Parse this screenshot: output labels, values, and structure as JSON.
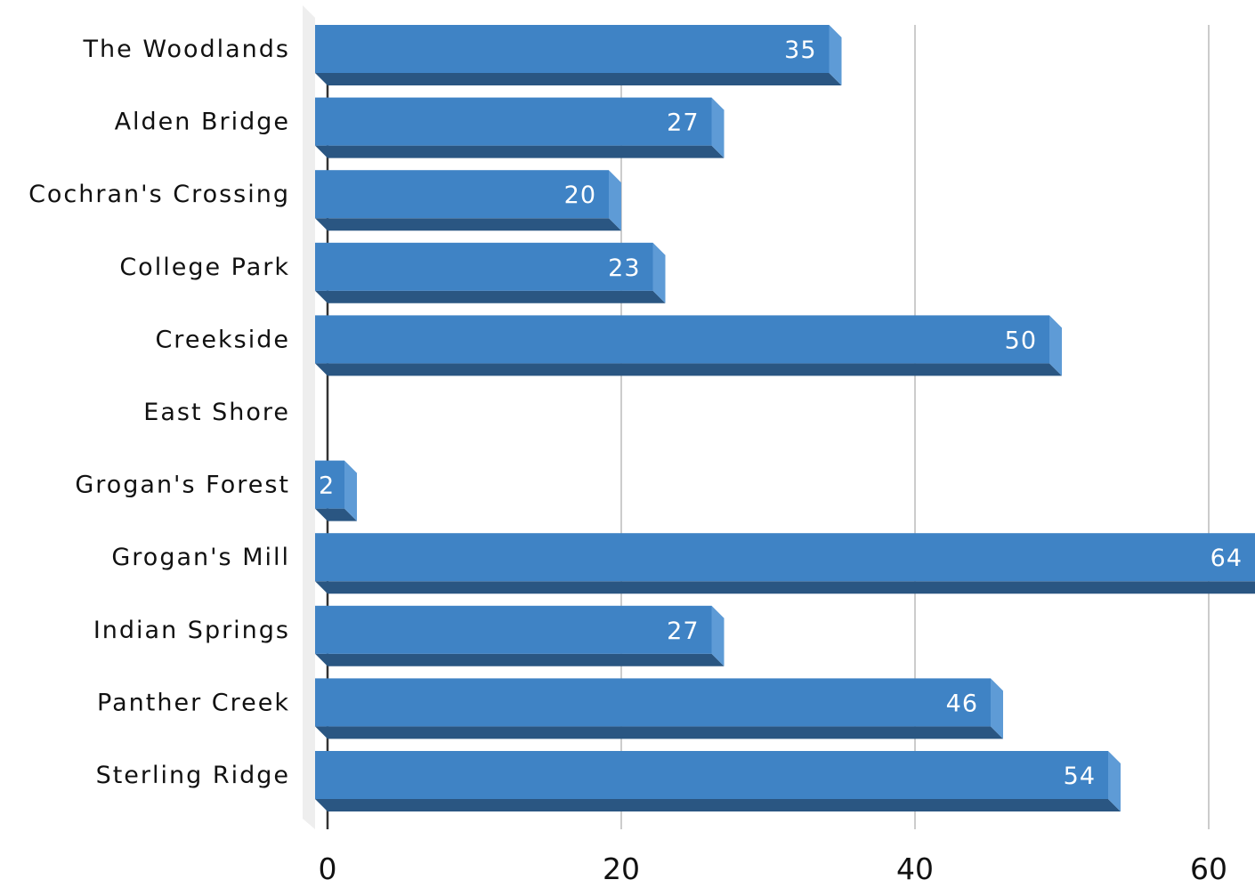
{
  "chart_data": {
    "type": "bar",
    "orientation": "horizontal",
    "style": "3d",
    "categories": [
      "The Woodlands",
      "Alden Bridge",
      "Cochran's Crossing",
      "College Park",
      "Creekside",
      "East Shore",
      "Grogan's Forest",
      "Grogan's Mill",
      "Indian Springs",
      "Panther Creek",
      "Sterling Ridge"
    ],
    "values": [
      35,
      27,
      20,
      23,
      50,
      0,
      2,
      64,
      27,
      46,
      54
    ],
    "value_labels": [
      "35",
      "27",
      "20",
      "23",
      "50",
      "",
      "2",
      "64",
      "27",
      "46",
      "54"
    ],
    "xticks": [
      "0",
      "20",
      "40",
      "60"
    ],
    "xtick_values": [
      0,
      20,
      40,
      60
    ],
    "xlim": [
      0,
      63.9
    ],
    "grid": "vertical",
    "legend": "none",
    "title": "",
    "xlabel": "",
    "ylabel": "",
    "colors": {
      "bar_front": "#3f83c5",
      "bar_bottom": "#2a5682",
      "bar_side": "#5e9bd6",
      "grid": "#cccccc",
      "wall": "#eeeeee",
      "axis": "#333333",
      "value_text": "#ffffff"
    }
  }
}
